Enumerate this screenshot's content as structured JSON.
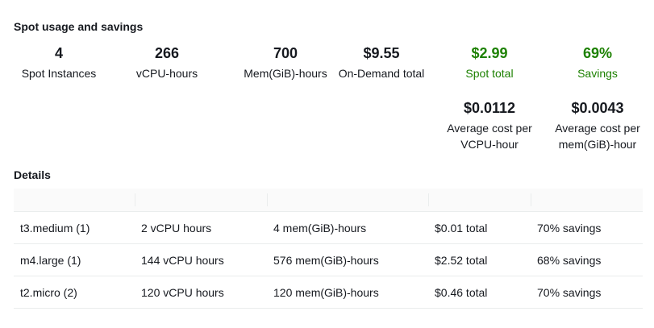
{
  "usage": {
    "title": "Spot usage and savings",
    "stats": [
      {
        "value": "4",
        "label": "Spot Instances"
      },
      {
        "value": "266",
        "label": "vCPU-hours"
      },
      {
        "value": "700",
        "label": "Mem(GiB)-hours"
      },
      {
        "value": "$9.55",
        "label": "On-Demand total"
      },
      {
        "value": "$2.99",
        "label": "Spot total"
      },
      {
        "value": "69%",
        "label": "Savings"
      }
    ],
    "averages": [
      {
        "value": "$0.0112",
        "label": "Average cost per VCPU-hour"
      },
      {
        "value": "$0.0043",
        "label": "Average cost per mem(GiB)-hour"
      }
    ],
    "accent_color": "#1d8102"
  },
  "details": {
    "title": "Details",
    "rows": [
      [
        "t3.medium (1)",
        "2 vCPU hours",
        "4 mem(GiB)-hours",
        "$0.01 total",
        "70% savings"
      ],
      [
        "m4.large (1)",
        "144 vCPU hours",
        "576 mem(GiB)-hours",
        "$2.52 total",
        "68% savings"
      ],
      [
        "t2.micro (2)",
        "120 vCPU hours",
        "120 mem(GiB)-hours",
        "$0.46 total",
        "70% savings"
      ]
    ]
  }
}
